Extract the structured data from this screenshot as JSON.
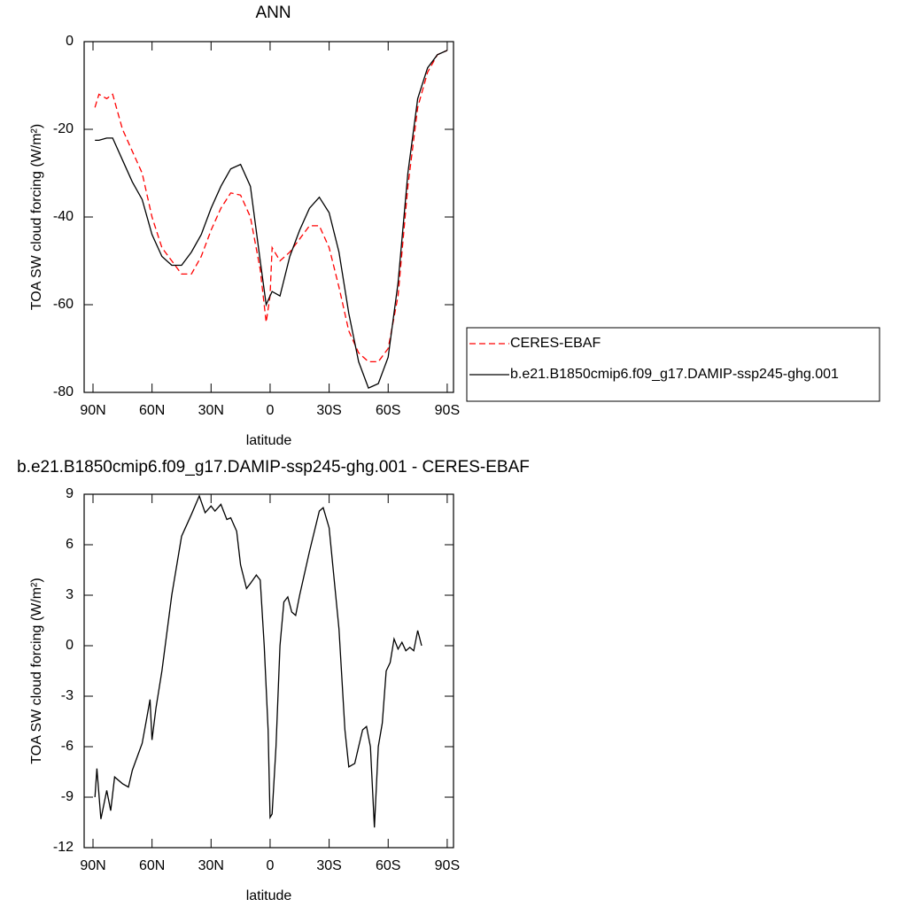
{
  "chart_data": [
    {
      "type": "line",
      "title": "ANN",
      "xlabel": "latitude",
      "ylabel": "TOA SW cloud forcing (W/m²)",
      "x": [
        89,
        87,
        83,
        80,
        75,
        70,
        65,
        60,
        55,
        50,
        45,
        40,
        35,
        30,
        25,
        20,
        15,
        10,
        5,
        2,
        0,
        -1,
        -5,
        -10,
        -15,
        -20,
        -25,
        -30,
        -35,
        -40,
        -45,
        -50,
        -55,
        -60,
        -65,
        -70,
        -75,
        -80,
        -85,
        -90
      ],
      "series": [
        {
          "name": "CERES-EBAF",
          "color": "#ff0000",
          "dashed": true,
          "values": [
            -15,
            -12,
            -13,
            -12,
            -20,
            -25,
            -30,
            -40,
            -47,
            -50,
            -53,
            -53,
            -49,
            -43,
            -38,
            -34.5,
            -35,
            -40,
            -52,
            -64,
            -58,
            -47,
            -50,
            -48,
            -45,
            -42,
            -42,
            -47,
            -56,
            -66,
            -71,
            -73,
            -73,
            -70,
            -58,
            -33,
            -15,
            -7,
            -3,
            -2
          ]
        },
        {
          "name": "b.e21.B1850cmip6.f09_g17.DAMIP-ssp245-ghg.001",
          "color": "#000000",
          "dashed": false,
          "values": [
            -22.5,
            -22.5,
            -22,
            -22,
            -27,
            -32,
            -36,
            -44,
            -49,
            -51,
            -51,
            -48,
            -44,
            -38,
            -33,
            -29,
            -28,
            -33,
            -50,
            -60,
            -58,
            -57,
            -58,
            -49,
            -43,
            -38,
            -35.5,
            -39,
            -48,
            -62,
            -73,
            -79,
            -78,
            -72,
            -55,
            -30,
            -13,
            -6,
            -3,
            -2
          ]
        }
      ],
      "xlim": [
        94.5,
        -93.2
      ],
      "ylim": [
        -80,
        0
      ],
      "xticks": [
        {
          "value": 90,
          "label": "90N"
        },
        {
          "value": 60,
          "label": "60N"
        },
        {
          "value": 30,
          "label": "30N"
        },
        0,
        {
          "value": -30,
          "label": "30S"
        },
        {
          "value": -60,
          "label": "60S"
        },
        {
          "value": -90,
          "label": "90S"
        }
      ],
      "yticks": [
        -80,
        -60,
        -40,
        -20,
        0
      ],
      "legend": "right"
    },
    {
      "type": "line",
      "title": "b.e21.B1850cmip6.f09_g17.DAMIP-ssp245-ghg.001 - CERES-EBAF",
      "xlabel": "latitude",
      "ylabel": "TOA SW cloud forcing (W/m²)",
      "x": [
        89,
        88,
        86,
        83,
        81,
        79,
        75,
        72,
        70,
        65,
        63,
        61,
        60,
        58,
        55,
        50,
        45,
        40,
        36,
        33,
        30,
        28,
        25,
        22,
        20,
        17,
        15,
        12,
        10,
        7,
        5,
        3,
        1,
        0,
        -1,
        -3,
        -5,
        -7,
        -9,
        -11,
        -13,
        -15,
        -20,
        -25,
        -27,
        -30,
        -35,
        -38,
        -40,
        -43,
        -45,
        -47,
        -49,
        -51,
        -53,
        -55,
        -57,
        -59,
        -61,
        -63,
        -65,
        -67,
        -69,
        -71,
        -73,
        -75,
        -77
      ],
      "series": [
        {
          "color": "#000000",
          "dashed": false,
          "values": [
            -9,
            -7.3,
            -10.3,
            -8.6,
            -9.8,
            -7.8,
            -8.2,
            -8.4,
            -7.4,
            -5.8,
            -4.5,
            -3.2,
            -5.6,
            -3.7,
            -1.5,
            3,
            6.5,
            7.8,
            8.9,
            7.9,
            8.3,
            8,
            8.4,
            7.5,
            7.6,
            6.8,
            4.8,
            3.4,
            3.7,
            4.2,
            3.9,
            0,
            -5,
            -10.2,
            -10,
            -6,
            0,
            2.6,
            2.9,
            2,
            1.8,
            3,
            5.6,
            8,
            8.2,
            7,
            1,
            -5,
            -7.2,
            -7,
            -6,
            -5,
            -4.8,
            -6,
            -10.8,
            -6,
            -4.6,
            -1.5,
            -1,
            0.4,
            -0.2,
            0.2,
            -0.3,
            -0.1,
            -0.3,
            0.9,
            0
          ]
        }
      ],
      "xlim": [
        94.5,
        -93.2
      ],
      "ylim": [
        -12,
        9
      ],
      "xticks": [
        {
          "value": 90,
          "label": "90N"
        },
        {
          "value": 60,
          "label": "60N"
        },
        {
          "value": 30,
          "label": "30N"
        },
        0,
        {
          "value": -30,
          "label": "30S"
        },
        {
          "value": -60,
          "label": "60S"
        },
        {
          "value": -90,
          "label": "90S"
        }
      ],
      "yticks": [
        -12,
        -9,
        -6,
        -3,
        0,
        3,
        6,
        9
      ]
    }
  ]
}
